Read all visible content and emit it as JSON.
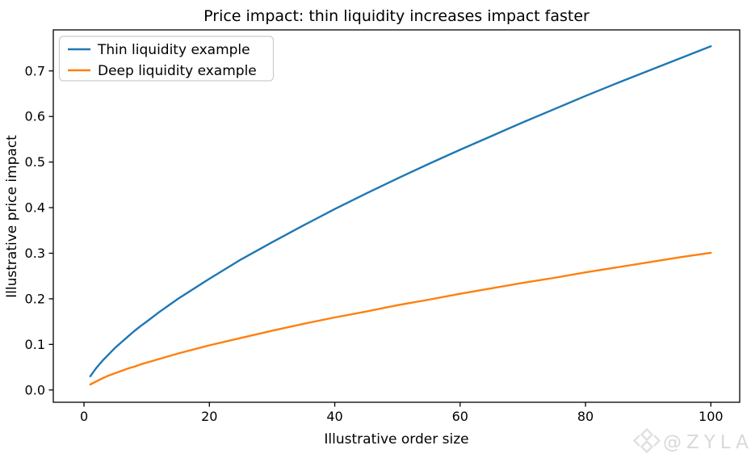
{
  "chart_data": {
    "type": "line",
    "title": "Price impact: thin liquidity increases impact faster",
    "xlabel": "Illustrative order size",
    "ylabel": "Illustrative price impact",
    "xlim": [
      -4.9,
      104.6
    ],
    "ylim": [
      -0.027,
      0.79
    ],
    "grid": false,
    "legend_position": "upper left",
    "xticks": [
      0,
      20,
      40,
      60,
      80,
      100
    ],
    "xtick_labels": [
      "0",
      "20",
      "40",
      "60",
      "80",
      "100"
    ],
    "yticks": [
      0.0,
      0.1,
      0.2,
      0.3,
      0.4,
      0.5,
      0.6,
      0.7
    ],
    "ytick_labels": [
      "0.0",
      "0.1",
      "0.2",
      "0.3",
      "0.4",
      "0.5",
      "0.6",
      "0.7"
    ],
    "x": [
      1,
      2,
      3,
      4,
      5,
      6,
      7,
      8,
      9,
      10,
      12,
      15,
      20,
      25,
      30,
      35,
      40,
      45,
      50,
      55,
      60,
      65,
      70,
      75,
      80,
      85,
      90,
      95,
      100
    ],
    "series": [
      {
        "name": "Thin liquidity example",
        "color": "#1f77b4",
        "values": [
          0.03,
          0.049,
          0.065,
          0.079,
          0.093,
          0.105,
          0.117,
          0.129,
          0.14,
          0.15,
          0.171,
          0.2,
          0.244,
          0.286,
          0.324,
          0.361,
          0.397,
          0.431,
          0.464,
          0.496,
          0.527,
          0.557,
          0.587,
          0.616,
          0.645,
          0.673,
          0.7,
          0.727,
          0.754
        ]
      },
      {
        "name": "Deep liquidity example",
        "color": "#ff7f0e",
        "values": [
          0.012,
          0.019,
          0.026,
          0.032,
          0.037,
          0.042,
          0.047,
          0.051,
          0.056,
          0.06,
          0.068,
          0.08,
          0.098,
          0.114,
          0.13,
          0.145,
          0.159,
          0.172,
          0.186,
          0.198,
          0.211,
          0.223,
          0.235,
          0.246,
          0.258,
          0.269,
          0.28,
          0.291,
          0.301
        ]
      }
    ]
  },
  "watermark": {
    "text": "@ZYLA",
    "icon": "diamond-ornament-icon",
    "text_color": "#d9d9d9",
    "icon_color": "#e0e0e0"
  }
}
